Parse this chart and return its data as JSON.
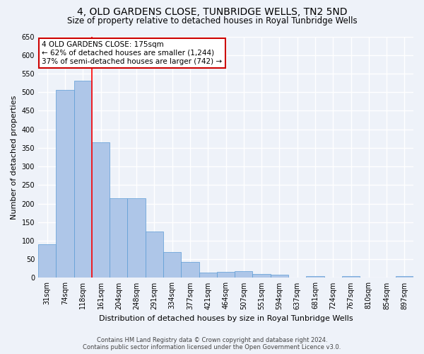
{
  "title": "4, OLD GARDENS CLOSE, TUNBRIDGE WELLS, TN2 5ND",
  "subtitle": "Size of property relative to detached houses in Royal Tunbridge Wells",
  "xlabel": "Distribution of detached houses by size in Royal Tunbridge Wells",
  "ylabel": "Number of detached properties",
  "footer1": "Contains HM Land Registry data © Crown copyright and database right 2024.",
  "footer2": "Contains public sector information licensed under the Open Government Licence v3.0.",
  "annotation_line1": "4 OLD GARDENS CLOSE: 175sqm",
  "annotation_line2": "← 62% of detached houses are smaller (1,244)",
  "annotation_line3": "37% of semi-detached houses are larger (742) →",
  "bar_color": "#aec6e8",
  "bar_edge_color": "#5b9bd5",
  "red_line_bin": 3.0,
  "categories": [
    "31sqm",
    "74sqm",
    "118sqm",
    "161sqm",
    "204sqm",
    "248sqm",
    "291sqm",
    "334sqm",
    "377sqm",
    "421sqm",
    "464sqm",
    "507sqm",
    "551sqm",
    "594sqm",
    "637sqm",
    "681sqm",
    "724sqm",
    "767sqm",
    "810sqm",
    "854sqm",
    "897sqm"
  ],
  "values": [
    90,
    507,
    530,
    365,
    215,
    215,
    125,
    70,
    43,
    15,
    17,
    18,
    10,
    8,
    0,
    5,
    0,
    5,
    0,
    0,
    5
  ],
  "ylim": [
    0,
    650
  ],
  "yticks": [
    0,
    50,
    100,
    150,
    200,
    250,
    300,
    350,
    400,
    450,
    500,
    550,
    600,
    650
  ],
  "background_color": "#eef2f9",
  "grid_color": "#ffffff",
  "annotation_box_color": "#ffffff",
  "annotation_box_edge": "#cc0000",
  "title_fontsize": 10,
  "subtitle_fontsize": 8.5,
  "axis_label_fontsize": 8,
  "tick_fontsize": 7,
  "annotation_fontsize": 7.5,
  "footer_fontsize": 6
}
